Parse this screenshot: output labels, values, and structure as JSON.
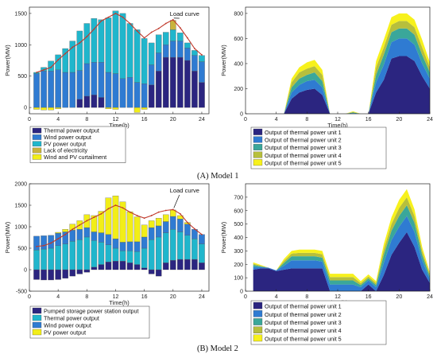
{
  "captions": [
    "(A) Model 1",
    "(B) Model 2"
  ],
  "chart_data": [
    {
      "id": "A-left",
      "type": "bar",
      "stacked": true,
      "xlabel": "Time(h)",
      "ylabel": "Power(MW)",
      "xlim": [
        0,
        25
      ],
      "ylim": [
        -100,
        1600
      ],
      "xticks": [
        0,
        4,
        8,
        12,
        16,
        20,
        24
      ],
      "yticks": [
        0,
        500,
        1000,
        1500
      ],
      "x": [
        1,
        2,
        3,
        4,
        5,
        6,
        7,
        8,
        9,
        10,
        11,
        12,
        13,
        14,
        15,
        16,
        17,
        18,
        19,
        20,
        21,
        22,
        23,
        24
      ],
      "series": [
        {
          "name": "Thermal power output",
          "color": "#2b2580",
          "values": [
            0,
            0,
            0,
            0,
            0,
            0,
            130,
            180,
            200,
            160,
            0,
            0,
            0,
            0,
            0,
            0,
            360,
            580,
            800,
            800,
            800,
            750,
            580,
            400
          ]
        },
        {
          "name": "Wind power output",
          "color": "#2f7bd2",
          "values": [
            540,
            580,
            580,
            600,
            560,
            560,
            460,
            520,
            520,
            560,
            560,
            540,
            460,
            480,
            400,
            380,
            320,
            290,
            200,
            260,
            260,
            200,
            250,
            330
          ]
        },
        {
          "name": "PV power output",
          "color": "#20b6cc",
          "values": [
            20,
            60,
            160,
            240,
            380,
            500,
            630,
            640,
            700,
            680,
            870,
            1000,
            1040,
            860,
            840,
            720,
            350,
            290,
            200,
            180,
            130,
            80,
            80,
            100
          ]
        },
        {
          "name": "Lack of electricity",
          "color": "#c9b33c",
          "values": [
            0,
            0,
            0,
            0,
            0,
            0,
            0,
            0,
            0,
            0,
            0,
            0,
            0,
            0,
            0,
            0,
            0,
            0,
            0,
            150,
            0,
            0,
            0,
            0
          ]
        },
        {
          "name": "Wind and PV curtailment",
          "color": "#f2ee18",
          "values": [
            -30,
            -40,
            -40,
            -20,
            0,
            0,
            0,
            0,
            0,
            0,
            -20,
            -30,
            0,
            0,
            -80,
            -30,
            0,
            0,
            0,
            0,
            0,
            0,
            0,
            0
          ]
        }
      ],
      "load_curve": [
        560,
        600,
        640,
        760,
        860,
        960,
        1030,
        1130,
        1250,
        1380,
        1440,
        1500,
        1440,
        1340,
        1220,
        1110,
        1200,
        1260,
        1340,
        1400,
        1270,
        1110,
        940,
        840
      ],
      "annotation": "Load curve"
    },
    {
      "id": "A-right",
      "type": "area",
      "stacked": true,
      "xlabel": "Time(h)",
      "ylabel": "Power(MW)",
      "xlim": [
        0,
        24
      ],
      "ylim": [
        0,
        850
      ],
      "xticks": [
        0,
        4,
        8,
        12,
        16,
        20,
        24
      ],
      "yticks": [
        0,
        200,
        400,
        600,
        800
      ],
      "x": [
        1,
        2,
        3,
        4,
        5,
        6,
        7,
        8,
        9,
        10,
        11,
        12,
        13,
        14,
        15,
        16,
        17,
        18,
        19,
        20,
        21,
        22,
        23,
        24
      ],
      "series": [
        {
          "name": "Output of thermal power unit 1",
          "color": "#2b2580",
          "values": [
            0,
            0,
            0,
            0,
            0,
            120,
            170,
            190,
            200,
            150,
            0,
            0,
            0,
            0,
            0,
            0,
            170,
            270,
            440,
            460,
            460,
            420,
            300,
            200
          ]
        },
        {
          "name": "Output of thermal power unit 2",
          "color": "#2f7bd2",
          "values": [
            0,
            0,
            0,
            0,
            0,
            50,
            60,
            70,
            70,
            60,
            0,
            0,
            0,
            5,
            0,
            0,
            80,
            120,
            130,
            140,
            140,
            130,
            100,
            80
          ]
        },
        {
          "name": "Output of thermal power unit 3",
          "color": "#3aa79a",
          "values": [
            0,
            0,
            0,
            0,
            0,
            40,
            50,
            50,
            60,
            50,
            0,
            0,
            0,
            5,
            0,
            0,
            60,
            80,
            80,
            80,
            80,
            80,
            70,
            50
          ]
        },
        {
          "name": "Output of thermal power unit 4",
          "color": "#b7bf3c",
          "values": [
            0,
            0,
            0,
            0,
            0,
            40,
            50,
            50,
            50,
            50,
            0,
            0,
            0,
            5,
            0,
            0,
            60,
            60,
            60,
            60,
            60,
            60,
            60,
            40
          ]
        },
        {
          "name": "Output of thermal power unit 5",
          "color": "#f7f11c",
          "values": [
            0,
            0,
            0,
            0,
            0,
            30,
            40,
            50,
            50,
            40,
            0,
            0,
            0,
            5,
            0,
            0,
            50,
            60,
            60,
            60,
            60,
            60,
            60,
            40
          ]
        }
      ]
    },
    {
      "id": "B-left",
      "type": "bar",
      "stacked": true,
      "xlabel": "Time(h)",
      "ylabel": "Power(MW)",
      "xlim": [
        0,
        25
      ],
      "ylim": [
        -500,
        2000
      ],
      "xticks": [
        0,
        4,
        8,
        12,
        16,
        20,
        24
      ],
      "yticks": [
        -500,
        0,
        500,
        1000,
        1500,
        2000
      ],
      "x": [
        1,
        2,
        3,
        4,
        5,
        6,
        7,
        8,
        9,
        10,
        11,
        12,
        13,
        14,
        15,
        16,
        17,
        18,
        19,
        20,
        21,
        22,
        23,
        24
      ],
      "series": [
        {
          "name": "Pumped storage power station output",
          "color": "#2b2580",
          "values": [
            -230,
            -240,
            -240,
            -230,
            -200,
            -150,
            -100,
            -60,
            60,
            120,
            180,
            200,
            200,
            160,
            120,
            40,
            -100,
            -150,
            160,
            220,
            240,
            240,
            240,
            160
          ]
        },
        {
          "name": "Thermal power output",
          "color": "#20b6cc",
          "values": [
            460,
            480,
            500,
            560,
            600,
            660,
            700,
            760,
            620,
            520,
            400,
            300,
            240,
            280,
            300,
            460,
            700,
            760,
            700,
            720,
            640,
            560,
            480,
            440
          ]
        },
        {
          "name": "Wind power output",
          "color": "#2f7bd2",
          "values": [
            320,
            310,
            300,
            290,
            280,
            260,
            240,
            220,
            200,
            220,
            240,
            220,
            200,
            210,
            230,
            260,
            280,
            260,
            260,
            300,
            300,
            260,
            220,
            220
          ]
        },
        {
          "name": "PV power output",
          "color": "#f2ee18",
          "values": [
            0,
            0,
            0,
            20,
            60,
            140,
            200,
            300,
            380,
            500,
            850,
            1000,
            940,
            700,
            580,
            280,
            160,
            180,
            160,
            150,
            80,
            40,
            0,
            0
          ]
        }
      ],
      "load_curve": [
        540,
        560,
        620,
        720,
        820,
        940,
        1040,
        1140,
        1220,
        1300,
        1420,
        1500,
        1440,
        1340,
        1260,
        1200,
        1260,
        1340,
        1380,
        1400,
        1300,
        1100,
        950,
        820
      ],
      "annotation": "Load curve"
    },
    {
      "id": "B-right",
      "type": "area",
      "stacked": true,
      "xlabel": "Time(h)",
      "ylabel": "Power(MW)",
      "xlim": [
        0,
        24
      ],
      "ylim": [
        0,
        800
      ],
      "xticks": [
        0,
        4,
        8,
        12,
        16,
        20,
        24
      ],
      "yticks": [
        0,
        100,
        200,
        300,
        400,
        500,
        600,
        700
      ],
      "x": [
        1,
        2,
        3,
        4,
        5,
        6,
        7,
        8,
        9,
        10,
        11,
        12,
        13,
        14,
        15,
        16,
        17,
        18,
        19,
        20,
        21,
        22,
        23,
        24
      ],
      "series": [
        {
          "name": "Output of thermal power unit 1",
          "color": "#2b2580",
          "values": [
            160,
            170,
            170,
            150,
            160,
            170,
            170,
            170,
            170,
            170,
            0,
            0,
            0,
            0,
            0,
            50,
            0,
            120,
            270,
            360,
            440,
            330,
            160,
            60
          ]
        },
        {
          "name": "Output of thermal power unit 2",
          "color": "#2f7bd2",
          "values": [
            20,
            10,
            5,
            5,
            30,
            60,
            60,
            60,
            60,
            50,
            50,
            50,
            50,
            50,
            30,
            30,
            30,
            90,
            110,
            120,
            120,
            110,
            70,
            30
          ]
        },
        {
          "name": "Output of thermal power unit 3",
          "color": "#3aa79a",
          "values": [
            15,
            5,
            0,
            0,
            20,
            30,
            30,
            30,
            30,
            30,
            30,
            30,
            30,
            30,
            15,
            15,
            15,
            60,
            70,
            80,
            80,
            70,
            40,
            20
          ]
        },
        {
          "name": "Output of thermal power unit 4",
          "color": "#b7bf3c",
          "values": [
            10,
            5,
            0,
            0,
            15,
            20,
            25,
            25,
            25,
            25,
            25,
            25,
            25,
            25,
            15,
            15,
            15,
            40,
            50,
            60,
            60,
            50,
            30,
            15
          ]
        },
        {
          "name": "Output of thermal power unit 5",
          "color": "#f7f11c",
          "values": [
            10,
            5,
            0,
            0,
            15,
            20,
            25,
            25,
            25,
            25,
            25,
            25,
            25,
            25,
            15,
            15,
            15,
            40,
            50,
            60,
            60,
            50,
            30,
            15
          ]
        }
      ]
    }
  ]
}
